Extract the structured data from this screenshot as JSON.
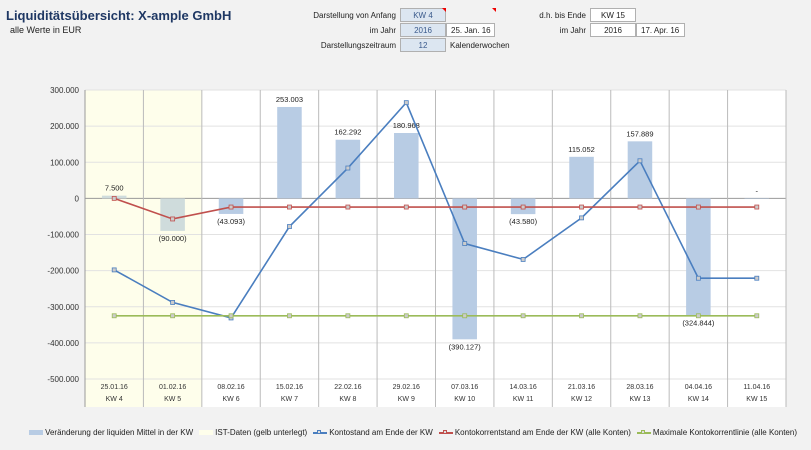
{
  "header": {
    "title": "Liquiditätsübersicht: X-ample GmbH",
    "subtitle": "alle Werte in EUR"
  },
  "controls": {
    "start_label": "Darstellung von Anfang",
    "start_kw": "KW 4",
    "year_label": "im Jahr",
    "start_year": "2016",
    "start_date": "25. Jan. 16",
    "period_label": "Darstellungszeitraum",
    "period_value": "12",
    "period_unit": "Kalenderwochen",
    "end_label": "d.h. bis Ende",
    "end_kw": "KW 15",
    "end_year_label": "im Jahr",
    "end_year": "2016",
    "end_date": "17. Apr. 16"
  },
  "colors": {
    "bar": "#b8cce4",
    "bar_ist": "#cfdcdc",
    "ist_bg": "#fefeeb",
    "konto": "#4a7ebf",
    "kk": "#c0504d",
    "max_kk": "#9bbb59"
  },
  "chart_data": {
    "type": "bar+line",
    "ylim": [
      -500000,
      300000
    ],
    "yticks": [
      300000,
      200000,
      100000,
      0,
      -100000,
      -200000,
      -300000,
      -400000,
      -500000
    ],
    "ytick_labels": [
      "300.000",
      "200.000",
      "100.000",
      "0",
      "-100.000",
      "-200.000",
      "-300.000",
      "-400.000",
      "-500.000"
    ],
    "dates": [
      "25.01.16",
      "01.02.16",
      "08.02.16",
      "15.02.16",
      "22.02.16",
      "29.02.16",
      "07.03.16",
      "14.03.16",
      "21.03.16",
      "28.03.16",
      "04.04.16",
      "11.04.16"
    ],
    "weeks": [
      "KW 4",
      "KW 5",
      "KW 6",
      "KW 7",
      "KW 8",
      "KW 9",
      "KW 10",
      "KW 11",
      "KW 12",
      "KW 13",
      "KW 14",
      "KW 15"
    ],
    "ist_weeks": 2,
    "series": [
      {
        "name": "Veränderung der liquiden Mittel in der KW",
        "type": "bar",
        "values": [
          7500,
          -90000,
          -43093,
          253003,
          162292,
          180968,
          -390127,
          -43580,
          115052,
          157889,
          -324844,
          0
        ],
        "labels": [
          "7.500",
          "(90.000)",
          "(43.093)",
          "253.003",
          "162.292",
          "180.968",
          "(390.127)",
          "(43.580)",
          "115.052",
          "157.889",
          "(324.844)",
          "-"
        ]
      },
      {
        "name": "IST-Daten (gelb unterlegt)",
        "type": "area"
      },
      {
        "name": "Kontostand am Ende der KW",
        "type": "line",
        "values": [
          -198000,
          -288000,
          -331000,
          -78000,
          84000,
          265000,
          -125000,
          -169000,
          -54000,
          104000,
          -221000,
          -221000
        ]
      },
      {
        "name": "Kontokorrentstand am Ende der KW (alle Konten)",
        "type": "line",
        "values": [
          0,
          -57000,
          -24000,
          -24000,
          -24000,
          -24000,
          -24000,
          -24000,
          -24000,
          -24000,
          -24000,
          -24000
        ]
      },
      {
        "name": "Maximale Kontokorrentlinie (alle Konten)",
        "type": "line",
        "values": [
          -325000,
          -325000,
          -325000,
          -325000,
          -325000,
          -325000,
          -325000,
          -325000,
          -325000,
          -325000,
          -325000,
          -325000
        ]
      }
    ],
    "grid": true,
    "legend": "bottom"
  }
}
